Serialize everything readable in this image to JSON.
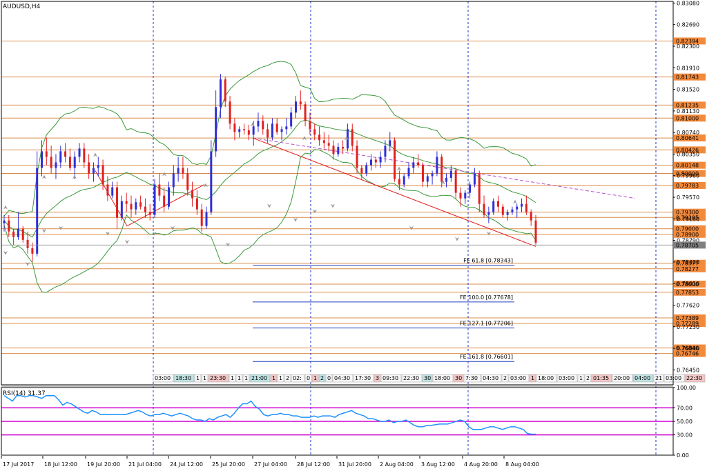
{
  "symbol_label": "AUDUSD,H4",
  "rsi_label": "RSI(14) 31.37",
  "colors": {
    "bull": "#2f2fd8",
    "bear": "#e02020",
    "level": "#d98c4a",
    "level_tag": "#f28a3c",
    "fe_line": "#1f3fbf",
    "bands": "#3a9a3a",
    "rsi": "#1e90ff",
    "rsi_levels": "#d000d0",
    "trend_red": "#e02020",
    "trend_purple": "#b44fd0",
    "current_tag": "#808080",
    "grid_blue": "#1d2fc8"
  },
  "chart_data": {
    "type": "candlestick",
    "title": "AUDUSD,H4",
    "ylim": [
      0.7618,
      0.8311
    ],
    "price_ticks": [
      "0.83080",
      "0.82690",
      "0.82300",
      "0.81910",
      "0.81520",
      "0.81130",
      "0.80740",
      "0.80350",
      "0.79960",
      "0.79570",
      "0.79180",
      "0.78790",
      "0.78400",
      "0.78010",
      "0.77620",
      "0.77230",
      "0.76840",
      "0.76450"
    ],
    "date_labels": [
      "17 Jul 2017",
      "18 Jul 12:00",
      "19 Jul 20:00",
      "21 Jul 04:00",
      "24 Jul 12:00",
      "25 Jul 20:00",
      "27 Jul 04:00",
      "28 Jul 12:00",
      "31 Jul 20:00",
      "2 Aug 04:00",
      "3 Aug 12:00",
      "4 Aug 20:00",
      "8 Aug 04:00"
    ],
    "current_price": "0.78705",
    "levels": [
      {
        "label": "0.82394",
        "value": 0.82394
      },
      {
        "label": "0.81743",
        "value": 0.81743
      },
      {
        "label": "0.81235",
        "value": 0.81235
      },
      {
        "label": "0.81000",
        "value": 0.81
      },
      {
        "label": "0.80641",
        "value": 0.80641
      },
      {
        "label": "0.80426",
        "value": 0.80426
      },
      {
        "label": "0.80148",
        "value": 0.80148
      },
      {
        "label": "0.80000",
        "value": 0.8
      },
      {
        "label": "0.79783",
        "value": 0.79783
      },
      {
        "label": "0.79300",
        "value": 0.793
      },
      {
        "label": "0.79205",
        "value": 0.79205
      },
      {
        "label": "0.79000",
        "value": 0.79
      },
      {
        "label": "0.78900",
        "value": 0.789
      },
      {
        "label": "0.78377",
        "value": 0.78377
      },
      {
        "label": "0.78277",
        "value": 0.78277
      },
      {
        "label": "0.78000",
        "value": 0.78
      },
      {
        "label": "0.77853",
        "value": 0.77853
      },
      {
        "label": "0.77389",
        "value": 0.77389
      },
      {
        "label": "0.77289",
        "value": 0.77289
      },
      {
        "label": "0.76846",
        "value": 0.76846
      },
      {
        "label": "0.76746",
        "value": 0.76746
      }
    ],
    "fibonacci": [
      {
        "label": "FE 61.8 [0.78343]",
        "value": 0.78343
      },
      {
        "label": "FE 100.0 [0.77678]",
        "value": 0.77678
      },
      {
        "label": "FE 127.1 [0.77206]",
        "value": 0.77206
      },
      {
        "label": "FE 161.8 [0.76601]",
        "value": 0.76601
      }
    ],
    "candles": [
      [
        0.791,
        0.7925,
        0.7895,
        0.7915
      ],
      [
        0.7915,
        0.7925,
        0.7885,
        0.7895
      ],
      [
        0.7895,
        0.79,
        0.787,
        0.7885
      ],
      [
        0.7885,
        0.793,
        0.788,
        0.79
      ],
      [
        0.79,
        0.7905,
        0.7875,
        0.788
      ],
      [
        0.788,
        0.7895,
        0.7855,
        0.7865
      ],
      [
        0.7865,
        0.7875,
        0.784,
        0.7855
      ],
      [
        0.7855,
        0.804,
        0.785,
        0.801
      ],
      [
        0.801,
        0.806,
        0.7995,
        0.804
      ],
      [
        0.804,
        0.8065,
        0.8015,
        0.803
      ],
      [
        0.803,
        0.805,
        0.8,
        0.801
      ],
      [
        0.801,
        0.8035,
        0.799,
        0.802
      ],
      [
        0.802,
        0.805,
        0.801,
        0.804
      ],
      [
        0.804,
        0.8055,
        0.802,
        0.803
      ],
      [
        0.803,
        0.8045,
        0.8005,
        0.801
      ],
      [
        0.801,
        0.804,
        0.799,
        0.803
      ],
      [
        0.803,
        0.8055,
        0.802,
        0.8045
      ],
      [
        0.8045,
        0.8055,
        0.801,
        0.802
      ],
      [
        0.802,
        0.8035,
        0.799,
        0.8
      ],
      [
        0.8,
        0.802,
        0.7985,
        0.801
      ],
      [
        0.801,
        0.803,
        0.7995,
        0.8015
      ],
      [
        0.8015,
        0.8025,
        0.797,
        0.798
      ],
      [
        0.798,
        0.7995,
        0.795,
        0.796
      ],
      [
        0.796,
        0.7985,
        0.7955,
        0.7975
      ],
      [
        0.7975,
        0.7985,
        0.79,
        0.792
      ],
      [
        0.792,
        0.796,
        0.7915,
        0.795
      ],
      [
        0.795,
        0.7965,
        0.793,
        0.7945
      ],
      [
        0.7945,
        0.796,
        0.792,
        0.7935
      ],
      [
        0.7935,
        0.7955,
        0.7925,
        0.7948
      ],
      [
        0.7948,
        0.796,
        0.7935,
        0.794
      ],
      [
        0.794,
        0.7955,
        0.792,
        0.793
      ],
      [
        0.793,
        0.7945,
        0.7915,
        0.7925
      ],
      [
        0.7925,
        0.799,
        0.792,
        0.798
      ],
      [
        0.798,
        0.8,
        0.795,
        0.796
      ],
      [
        0.796,
        0.7975,
        0.793,
        0.794
      ],
      [
        0.794,
        0.7985,
        0.7935,
        0.7975
      ],
      [
        0.7975,
        0.8015,
        0.796,
        0.8
      ],
      [
        0.8,
        0.803,
        0.7985,
        0.801
      ],
      [
        0.801,
        0.803,
        0.799,
        0.8
      ],
      [
        0.8,
        0.801,
        0.796,
        0.797
      ],
      [
        0.797,
        0.7985,
        0.794,
        0.7955
      ],
      [
        0.7955,
        0.797,
        0.7925,
        0.7935
      ],
      [
        0.7935,
        0.7945,
        0.7895,
        0.7905
      ],
      [
        0.7905,
        0.794,
        0.79,
        0.793
      ],
      [
        0.793,
        0.806,
        0.7925,
        0.804
      ],
      [
        0.804,
        0.815,
        0.803,
        0.812
      ],
      [
        0.812,
        0.818,
        0.81,
        0.817
      ],
      [
        0.817,
        0.8175,
        0.812,
        0.813
      ],
      [
        0.813,
        0.814,
        0.808,
        0.809
      ],
      [
        0.809,
        0.81,
        0.806,
        0.8075
      ],
      [
        0.8075,
        0.8085,
        0.8065,
        0.808
      ],
      [
        0.808,
        0.809,
        0.807,
        0.8078
      ],
      [
        0.8078,
        0.8088,
        0.806,
        0.807
      ],
      [
        0.807,
        0.8095,
        0.805,
        0.8085
      ],
      [
        0.8085,
        0.811,
        0.8075,
        0.8095
      ],
      [
        0.8095,
        0.8105,
        0.807,
        0.808
      ],
      [
        0.808,
        0.809,
        0.8055,
        0.8065
      ],
      [
        0.8065,
        0.81,
        0.806,
        0.809
      ],
      [
        0.809,
        0.81,
        0.807,
        0.8075
      ],
      [
        0.8075,
        0.8085,
        0.806,
        0.808
      ],
      [
        0.808,
        0.81,
        0.807,
        0.8085
      ],
      [
        0.8085,
        0.812,
        0.808,
        0.811
      ],
      [
        0.811,
        0.814,
        0.81,
        0.813
      ],
      [
        0.813,
        0.815,
        0.8115,
        0.8125
      ],
      [
        0.8125,
        0.813,
        0.8085,
        0.8095
      ],
      [
        0.8095,
        0.811,
        0.807,
        0.808
      ],
      [
        0.808,
        0.809,
        0.806,
        0.807
      ],
      [
        0.807,
        0.8085,
        0.805,
        0.806
      ],
      [
        0.806,
        0.8075,
        0.8045,
        0.8055
      ],
      [
        0.8055,
        0.807,
        0.804,
        0.805
      ],
      [
        0.805,
        0.806,
        0.8025,
        0.8035
      ],
      [
        0.8035,
        0.8055,
        0.803,
        0.8048
      ],
      [
        0.8048,
        0.806,
        0.8035,
        0.8045
      ],
      [
        0.8045,
        0.809,
        0.804,
        0.808
      ],
      [
        0.808,
        0.809,
        0.804,
        0.805
      ],
      [
        0.805,
        0.806,
        0.8,
        0.801
      ],
      [
        0.801,
        0.8015,
        0.799,
        0.8
      ],
      [
        0.8,
        0.802,
        0.7995,
        0.8015
      ],
      [
        0.8015,
        0.8035,
        0.8005,
        0.8025
      ],
      [
        0.8025,
        0.803,
        0.801,
        0.802
      ],
      [
        0.802,
        0.804,
        0.801,
        0.803
      ],
      [
        0.803,
        0.806,
        0.802,
        0.805
      ],
      [
        0.805,
        0.8075,
        0.804,
        0.806
      ],
      [
        0.806,
        0.8065,
        0.7985,
        0.799
      ],
      [
        0.799,
        0.8005,
        0.797,
        0.798
      ],
      [
        0.798,
        0.8,
        0.7975,
        0.7995
      ],
      [
        0.7995,
        0.802,
        0.799,
        0.801
      ],
      [
        0.801,
        0.803,
        0.8,
        0.802
      ],
      [
        0.802,
        0.8035,
        0.801,
        0.8015
      ],
      [
        0.8015,
        0.802,
        0.7975,
        0.7985
      ],
      [
        0.7985,
        0.8,
        0.7975,
        0.7995
      ],
      [
        0.7995,
        0.8005,
        0.798,
        0.8
      ],
      [
        0.8,
        0.804,
        0.7995,
        0.803
      ],
      [
        0.803,
        0.8035,
        0.7975,
        0.7985
      ],
      [
        0.7985,
        0.8,
        0.7975,
        0.7992
      ],
      [
        0.7992,
        0.8015,
        0.7985,
        0.8005
      ],
      [
        0.8005,
        0.801,
        0.7955,
        0.7965
      ],
      [
        0.7965,
        0.7975,
        0.794,
        0.7955
      ],
      [
        0.7955,
        0.797,
        0.7945,
        0.7965
      ],
      [
        0.7965,
        0.7985,
        0.7955,
        0.798
      ],
      [
        0.798,
        0.801,
        0.7975,
        0.8
      ],
      [
        0.8,
        0.8005,
        0.793,
        0.7945
      ],
      [
        0.7945,
        0.796,
        0.792,
        0.7925
      ],
      [
        0.7925,
        0.794,
        0.791,
        0.793
      ],
      [
        0.793,
        0.7955,
        0.7925,
        0.795
      ],
      [
        0.795,
        0.796,
        0.793,
        0.794
      ],
      [
        0.794,
        0.7945,
        0.792,
        0.7925
      ],
      [
        0.7925,
        0.7935,
        0.7915,
        0.793
      ],
      [
        0.793,
        0.794,
        0.7925,
        0.7935
      ],
      [
        0.7935,
        0.7945,
        0.792,
        0.794
      ],
      [
        0.794,
        0.7955,
        0.793,
        0.7945
      ],
      [
        0.7945,
        0.796,
        0.7925,
        0.793
      ],
      [
        0.793,
        0.7935,
        0.7905,
        0.7915
      ],
      [
        0.7915,
        0.7925,
        0.787,
        0.7875
      ]
    ],
    "rsi": {
      "ylim": [
        0,
        100
      ],
      "levels": [
        70,
        50,
        30
      ],
      "ticks": [
        "100.00",
        "70.00",
        "50.00",
        "30.00",
        "0.00"
      ],
      "values": [
        88,
        84,
        80,
        88,
        88,
        86,
        88,
        88,
        86,
        84,
        88,
        88,
        88,
        82,
        74,
        78,
        76,
        72,
        68,
        64,
        62,
        66,
        64,
        60,
        60,
        60,
        60,
        60,
        60,
        60,
        62,
        64,
        66,
        64,
        60,
        58,
        60,
        60,
        62,
        60,
        58,
        60,
        62,
        60,
        58,
        54,
        52,
        52,
        50,
        54,
        52,
        56,
        58,
        60,
        56,
        62,
        70,
        76,
        76,
        80,
        72,
        68,
        60,
        58,
        60,
        60,
        62,
        60,
        60,
        58,
        58,
        56,
        56,
        56,
        58,
        56,
        58,
        58,
        58,
        56,
        60,
        62,
        64,
        66,
        62,
        60,
        58,
        54,
        54,
        52,
        50,
        50,
        52,
        48,
        50,
        50,
        52,
        48,
        44,
        42,
        42,
        44,
        44,
        45,
        46,
        46,
        46,
        48,
        50,
        52,
        50,
        42,
        38,
        38,
        38,
        40,
        42,
        42,
        40,
        38,
        40,
        42,
        42,
        40,
        38,
        32,
        31,
        31
      ]
    },
    "session_labels": [
      "03:00",
      "18:30",
      "1",
      "1",
      "23:30",
      "1",
      "1",
      "1",
      "21:00",
      "1",
      "1",
      "2",
      "02:",
      "0",
      "1",
      "2",
      "0",
      "04:30",
      "17:30",
      "3",
      "09:30",
      "22:30",
      "30",
      "18:00",
      "30",
      "7:30",
      "04:30",
      "2",
      "03:00",
      "1",
      "18:00",
      "03:00",
      "1",
      "2",
      "01:35",
      "20:00",
      "04:00",
      "21",
      "03:00",
      "22:30"
    ]
  }
}
